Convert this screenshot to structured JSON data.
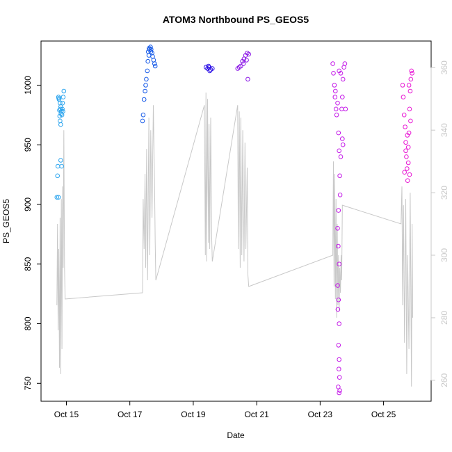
{
  "chart_data": {
    "type": "scatter",
    "title": "ATOM3 Northbound PS_GEOS5",
    "xlabel": "Date",
    "ylabel": "PS_GEOS5",
    "x_ticks": [
      "Oct 15",
      "Oct 17",
      "Oct 19",
      "Oct 21",
      "Oct 23",
      "Oct 25"
    ],
    "x_tick_values": [
      15,
      17,
      19,
      21,
      23,
      25
    ],
    "xlim": [
      14.2,
      26.5
    ],
    "y_ticks": [
      750,
      800,
      850,
      900,
      950,
      1000
    ],
    "ylim": [
      735,
      1037
    ],
    "y2_ticks": [
      260,
      280,
      300,
      320,
      340,
      360
    ],
    "y2lim": [
      253.3,
      368.5
    ],
    "grid": false,
    "legend": "none",
    "colors": {
      "line": "#c8c8c8",
      "axis": "#000000",
      "secondary_axis": "#c8c8c8"
    },
    "series": [
      {
        "color": "#2aa4ee",
        "points": [
          [
            14.7,
            906
          ],
          [
            14.75,
            906
          ],
          [
            14.72,
            924
          ],
          [
            14.73,
            932
          ],
          [
            14.82,
            937
          ],
          [
            14.85,
            932
          ],
          [
            14.75,
            990
          ],
          [
            14.77,
            988
          ],
          [
            14.8,
            985
          ],
          [
            14.82,
            982
          ],
          [
            14.84,
            978
          ],
          [
            14.86,
            975
          ],
          [
            14.8,
            970
          ],
          [
            14.82,
            967
          ],
          [
            14.78,
            979
          ],
          [
            14.79,
            974
          ],
          [
            14.88,
            985
          ],
          [
            14.9,
            990
          ],
          [
            14.92,
            995
          ],
          [
            14.76,
            989
          ],
          [
            14.81,
            980
          ],
          [
            14.83,
            976
          ],
          [
            14.87,
            980
          ],
          [
            14.89,
            978
          ]
        ]
      },
      {
        "color": "#1559e8",
        "points": [
          [
            17.4,
            970
          ],
          [
            17.42,
            975
          ],
          [
            17.45,
            988
          ],
          [
            17.48,
            995
          ],
          [
            17.5,
            1000
          ],
          [
            17.52,
            1005
          ],
          [
            17.55,
            1012
          ],
          [
            17.57,
            1020
          ],
          [
            17.6,
            1025
          ],
          [
            17.62,
            1030
          ],
          [
            17.65,
            1032
          ],
          [
            17.67,
            1030
          ],
          [
            17.7,
            1027
          ],
          [
            17.72,
            1024
          ],
          [
            17.75,
            1021
          ],
          [
            17.78,
            1018
          ],
          [
            17.8,
            1016
          ],
          [
            17.58,
            1028
          ],
          [
            17.61,
            1031
          ],
          [
            17.66,
            1028
          ]
        ]
      },
      {
        "color": "#2b0fe6",
        "points": [
          [
            19.4,
            1015
          ],
          [
            19.45,
            1014
          ],
          [
            19.5,
            1015
          ],
          [
            19.55,
            1013
          ],
          [
            19.6,
            1014
          ],
          [
            19.48,
            1016
          ],
          [
            19.52,
            1012
          ]
        ]
      },
      {
        "color": "#8a15e6",
        "points": [
          [
            20.4,
            1014
          ],
          [
            20.45,
            1015
          ],
          [
            20.5,
            1016
          ],
          [
            20.55,
            1020
          ],
          [
            20.6,
            1022
          ],
          [
            20.65,
            1025
          ],
          [
            20.7,
            1027
          ],
          [
            20.72,
            1005
          ],
          [
            20.75,
            1026
          ],
          [
            20.68,
            1021
          ],
          [
            20.58,
            1018
          ]
        ]
      },
      {
        "color": "#c41ae8",
        "points": [
          [
            23.4,
            1018
          ],
          [
            23.42,
            1010
          ],
          [
            23.45,
            1000
          ],
          [
            23.47,
            990
          ],
          [
            23.5,
            980
          ],
          [
            23.52,
            975
          ],
          [
            23.55,
            985
          ],
          [
            23.48,
            995
          ],
          [
            23.58,
            960
          ],
          [
            23.6,
            945
          ],
          [
            23.62,
            924
          ],
          [
            23.63,
            908
          ],
          [
            23.58,
            895
          ],
          [
            23.55,
            880
          ],
          [
            23.57,
            865
          ],
          [
            23.6,
            850
          ],
          [
            23.55,
            832
          ],
          [
            23.58,
            820
          ],
          [
            23.56,
            812
          ],
          [
            23.6,
            800
          ],
          [
            23.58,
            782
          ],
          [
            23.6,
            770
          ],
          [
            23.59,
            762
          ],
          [
            23.61,
            755
          ],
          [
            23.57,
            747
          ],
          [
            23.6,
            742
          ],
          [
            23.62,
            744
          ],
          [
            23.65,
            940
          ],
          [
            23.7,
            955
          ],
          [
            23.72,
            950
          ],
          [
            23.68,
            980
          ],
          [
            23.7,
            990
          ],
          [
            23.72,
            1005
          ],
          [
            23.75,
            1015
          ],
          [
            23.78,
            1018
          ],
          [
            23.65,
            1010
          ],
          [
            23.6,
            1012
          ],
          [
            23.8,
            980
          ]
        ]
      },
      {
        "color": "#e818d4",
        "points": [
          [
            25.6,
            1000
          ],
          [
            25.62,
            990
          ],
          [
            25.65,
            975
          ],
          [
            25.68,
            965
          ],
          [
            25.7,
            952
          ],
          [
            25.72,
            940
          ],
          [
            25.74,
            930
          ],
          [
            25.76,
            920
          ],
          [
            25.78,
            935
          ],
          [
            25.8,
            960
          ],
          [
            25.82,
            980
          ],
          [
            25.84,
            995
          ],
          [
            25.86,
            1005
          ],
          [
            25.88,
            1012
          ],
          [
            25.9,
            1010
          ],
          [
            25.75,
            958
          ],
          [
            25.7,
            945
          ],
          [
            25.8,
            1000
          ],
          [
            25.82,
            925
          ],
          [
            25.78,
            948
          ],
          [
            25.66,
            927
          ],
          [
            25.85,
            970
          ]
        ]
      },
      {
        "color": "#c8c8c8",
        "axis": "secondary",
        "line": [
          [
            14.7,
            284
          ],
          [
            14.72,
            310
          ],
          [
            14.74,
            276
          ],
          [
            14.76,
            302
          ],
          [
            14.78,
            264
          ],
          [
            14.8,
            312
          ],
          [
            14.82,
            262
          ],
          [
            14.84,
            318
          ],
          [
            14.86,
            270
          ],
          [
            14.88,
            322
          ],
          [
            14.9,
            296
          ],
          [
            14.92,
            340
          ],
          [
            14.94,
            296
          ],
          [
            14.96,
            286
          ],
          [
            17.4,
            288
          ],
          [
            17.42,
            318
          ],
          [
            17.45,
            302
          ],
          [
            17.48,
            326
          ],
          [
            17.5,
            296
          ],
          [
            17.53,
            334
          ],
          [
            17.56,
            292
          ],
          [
            17.6,
            344
          ],
          [
            17.63,
            300
          ],
          [
            17.66,
            340
          ],
          [
            17.7,
            312
          ],
          [
            17.74,
            348
          ],
          [
            17.78,
            322
          ],
          [
            17.8,
            304
          ],
          [
            17.82,
            292
          ],
          [
            19.35,
            348
          ],
          [
            19.38,
            300
          ],
          [
            19.4,
            352
          ],
          [
            19.42,
            298
          ],
          [
            19.45,
            350
          ],
          [
            19.48,
            304
          ],
          [
            19.5,
            342
          ],
          [
            19.52,
            302
          ],
          [
            19.55,
            344
          ],
          [
            19.58,
            306
          ],
          [
            19.6,
            298
          ],
          [
            20.4,
            348
          ],
          [
            20.42,
            302
          ],
          [
            20.45,
            346
          ],
          [
            20.48,
            296
          ],
          [
            20.5,
            344
          ],
          [
            20.53,
            300
          ],
          [
            20.56,
            340
          ],
          [
            20.6,
            298
          ],
          [
            20.63,
            336
          ],
          [
            20.66,
            302
          ],
          [
            20.7,
            328
          ],
          [
            20.72,
            294
          ],
          [
            20.75,
            290
          ],
          [
            23.4,
            300
          ],
          [
            23.42,
            330
          ],
          [
            23.44,
            290
          ],
          [
            23.46,
            326
          ],
          [
            23.48,
            286
          ],
          [
            23.5,
            318
          ],
          [
            23.52,
            280
          ],
          [
            23.54,
            310
          ],
          [
            23.56,
            284
          ],
          [
            23.58,
            300
          ],
          [
            23.6,
            282
          ],
          [
            23.62,
            296
          ],
          [
            23.64,
            288
          ],
          [
            23.66,
            300
          ],
          [
            23.68,
            292
          ],
          [
            23.7,
            316
          ],
          [
            25.55,
            310
          ],
          [
            25.58,
            322
          ],
          [
            25.6,
            284
          ],
          [
            25.63,
            316
          ],
          [
            25.66,
            272
          ],
          [
            25.7,
            318
          ],
          [
            25.73,
            262
          ],
          [
            25.76,
            300
          ],
          [
            25.8,
            270
          ],
          [
            25.84,
            320
          ],
          [
            25.88,
            258
          ],
          [
            25.9,
            310
          ],
          [
            25.92,
            280
          ]
        ]
      }
    ]
  }
}
